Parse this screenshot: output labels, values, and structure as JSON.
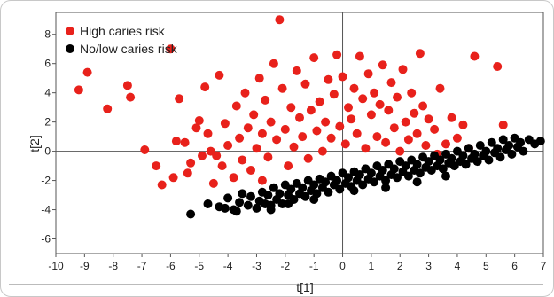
{
  "chart_data": {
    "type": "scatter",
    "xlabel": "t[1]",
    "ylabel": "t[2]",
    "xlim": [
      -10,
      7
    ],
    "ylim": [
      -7,
      9.5
    ],
    "xticks": [
      "-10",
      "-9",
      "-8",
      "-7",
      "-6",
      "-5",
      "-4",
      "-3",
      "-2",
      "-1",
      "0",
      "1",
      "2",
      "3",
      "4",
      "5",
      "6",
      "7"
    ],
    "yticks": [
      "-6",
      "-4",
      "-2",
      "0",
      "2",
      "4",
      "6",
      "8"
    ],
    "legend_position": "top-left",
    "grid": false,
    "series": [
      {
        "name": "High caries risk",
        "color": "#e8211b",
        "points": [
          [
            -9.2,
            4.2
          ],
          [
            -8.9,
            5.4
          ],
          [
            -8.2,
            2.9
          ],
          [
            -7.5,
            4.5
          ],
          [
            -7.4,
            3.7
          ],
          [
            -6.9,
            0.1
          ],
          [
            -6.3,
            -2.3
          ],
          [
            -6.0,
            7.0
          ],
          [
            -5.8,
            0.7
          ],
          [
            -5.7,
            3.6
          ],
          [
            -5.5,
            0.6
          ],
          [
            -5.4,
            -1.5
          ],
          [
            -5.3,
            -0.8
          ],
          [
            -5.1,
            1.6
          ],
          [
            -5.0,
            2.1
          ],
          [
            -4.9,
            -0.3
          ],
          [
            -4.8,
            4.4
          ],
          [
            -4.7,
            1.2
          ],
          [
            -4.6,
            0.0
          ],
          [
            -4.5,
            -2.2
          ],
          [
            -4.3,
            5.2
          ],
          [
            -4.2,
            -1.0
          ],
          [
            -4.1,
            1.9
          ],
          [
            -4.0,
            0.4
          ],
          [
            -3.8,
            -1.8
          ],
          [
            -3.7,
            3.1
          ],
          [
            -3.6,
            0.9
          ],
          [
            -3.5,
            -0.6
          ],
          [
            -3.4,
            4.0
          ],
          [
            -3.3,
            1.6
          ],
          [
            -3.2,
            -1.3
          ],
          [
            -3.1,
            2.5
          ],
          [
            -3.0,
            0.2
          ],
          [
            -2.9,
            5.0
          ],
          [
            -2.8,
            -2.0
          ],
          [
            -2.8,
            1.2
          ],
          [
            -2.7,
            3.5
          ],
          [
            -2.6,
            -0.4
          ],
          [
            -2.5,
            2.0
          ],
          [
            -2.4,
            6.0
          ],
          [
            -2.3,
            0.8
          ],
          [
            -2.2,
            9.0
          ],
          [
            -2.1,
            4.3
          ],
          [
            -2.0,
            1.5
          ],
          [
            -1.9,
            -1.0
          ],
          [
            -1.8,
            3.0
          ],
          [
            -1.7,
            0.3
          ],
          [
            -1.6,
            5.5
          ],
          [
            -1.5,
            2.3
          ],
          [
            -1.4,
            1.0
          ],
          [
            -1.3,
            4.6
          ],
          [
            -1.2,
            -0.5
          ],
          [
            -1.1,
            2.8
          ],
          [
            -1.0,
            6.4
          ],
          [
            -0.9,
            1.4
          ],
          [
            -0.8,
            3.4
          ],
          [
            -0.7,
            0.0
          ],
          [
            -0.6,
            2.0
          ],
          [
            -0.5,
            4.9
          ],
          [
            -0.4,
            0.9
          ],
          [
            -0.3,
            3.9
          ],
          [
            -0.2,
            6.6
          ],
          [
            -0.1,
            1.7
          ],
          [
            0.0,
            5.1
          ],
          [
            0.1,
            0.5
          ],
          [
            0.2,
            3.0
          ],
          [
            0.3,
            2.2
          ],
          [
            0.4,
            4.3
          ],
          [
            0.5,
            1.2
          ],
          [
            0.6,
            6.5
          ],
          [
            0.7,
            3.6
          ],
          [
            0.8,
            0.2
          ],
          [
            0.9,
            5.3
          ],
          [
            1.0,
            2.5
          ],
          [
            1.1,
            4.0
          ],
          [
            1.2,
            1.0
          ],
          [
            1.3,
            3.2
          ],
          [
            1.4,
            5.9
          ],
          [
            1.5,
            0.6
          ],
          [
            1.6,
            2.8
          ],
          [
            1.7,
            4.7
          ],
          [
            1.8,
            1.6
          ],
          [
            1.9,
            3.7
          ],
          [
            2.0,
            0.0
          ],
          [
            2.1,
            5.6
          ],
          [
            2.2,
            2.0
          ],
          [
            2.3,
            0.8
          ],
          [
            2.4,
            4.0
          ],
          [
            2.5,
            2.6
          ],
          [
            2.6,
            1.2
          ],
          [
            2.7,
            6.7
          ],
          [
            2.8,
            3.1
          ],
          [
            2.9,
            0.4
          ],
          [
            3.0,
            2.2
          ],
          [
            3.2,
            1.5
          ],
          [
            3.4,
            4.3
          ],
          [
            3.6,
            0.5
          ],
          [
            3.8,
            2.3
          ],
          [
            4.0,
            0.9
          ],
          [
            4.2,
            1.8
          ],
          [
            4.6,
            6.5
          ],
          [
            5.4,
            5.8
          ],
          [
            5.6,
            1.8
          ],
          [
            4.4,
            0.2
          ],
          [
            3.3,
            -0.2
          ],
          [
            -6.5,
            -1.0
          ],
          [
            -5.9,
            -1.8
          ],
          [
            -4.4,
            -0.3
          ]
        ]
      },
      {
        "name": "No/low caries risk",
        "color": "#000000",
        "points": [
          [
            -5.3,
            -4.3
          ],
          [
            -4.7,
            -3.6
          ],
          [
            -4.3,
            -3.8
          ],
          [
            -4.0,
            -3.2
          ],
          [
            -3.8,
            -4.0
          ],
          [
            -3.6,
            -3.5
          ],
          [
            -3.5,
            -2.9
          ],
          [
            -3.3,
            -3.7
          ],
          [
            -3.2,
            -3.1
          ],
          [
            -3.0,
            -3.9
          ],
          [
            -2.9,
            -3.4
          ],
          [
            -2.8,
            -2.8
          ],
          [
            -2.7,
            -3.6
          ],
          [
            -2.6,
            -3.0
          ],
          [
            -2.5,
            -3.7
          ],
          [
            -2.4,
            -2.5
          ],
          [
            -2.3,
            -3.3
          ],
          [
            -2.2,
            -2.9
          ],
          [
            -2.1,
            -3.6
          ],
          [
            -2.0,
            -2.3
          ],
          [
            -1.9,
            -3.0
          ],
          [
            -1.8,
            -2.6
          ],
          [
            -1.7,
            -3.3
          ],
          [
            -1.6,
            -2.2
          ],
          [
            -1.5,
            -2.9
          ],
          [
            -1.4,
            -2.5
          ],
          [
            -1.3,
            -3.1
          ],
          [
            -1.2,
            -2.0
          ],
          [
            -1.1,
            -2.7
          ],
          [
            -1.0,
            -2.3
          ],
          [
            -0.9,
            -2.9
          ],
          [
            -0.8,
            -1.9
          ],
          [
            -0.7,
            -2.5
          ],
          [
            -0.6,
            -2.1
          ],
          [
            -0.5,
            -2.8
          ],
          [
            -0.4,
            -1.7
          ],
          [
            -0.3,
            -2.3
          ],
          [
            -0.2,
            -2.0
          ],
          [
            -0.1,
            -2.6
          ],
          [
            0.0,
            -1.5
          ],
          [
            0.1,
            -2.2
          ],
          [
            0.2,
            -1.8
          ],
          [
            0.3,
            -2.4
          ],
          [
            0.4,
            -1.4
          ],
          [
            0.5,
            -2.0
          ],
          [
            0.6,
            -1.6
          ],
          [
            0.7,
            -2.3
          ],
          [
            0.8,
            -1.2
          ],
          [
            0.9,
            -1.9
          ],
          [
            1.0,
            -1.5
          ],
          [
            1.1,
            -2.1
          ],
          [
            1.2,
            -1.0
          ],
          [
            1.3,
            -1.7
          ],
          [
            1.4,
            -1.3
          ],
          [
            1.5,
            -2.0
          ],
          [
            1.6,
            -0.9
          ],
          [
            1.7,
            -1.6
          ],
          [
            1.8,
            -1.2
          ],
          [
            1.9,
            -1.8
          ],
          [
            2.0,
            -0.7
          ],
          [
            2.1,
            -1.4
          ],
          [
            2.2,
            -1.0
          ],
          [
            2.3,
            -1.7
          ],
          [
            2.4,
            -0.6
          ],
          [
            2.5,
            -1.3
          ],
          [
            2.6,
            -0.9
          ],
          [
            2.7,
            -1.5
          ],
          [
            2.8,
            -0.4
          ],
          [
            2.9,
            -1.1
          ],
          [
            3.0,
            -0.7
          ],
          [
            3.1,
            -1.3
          ],
          [
            3.2,
            -0.3
          ],
          [
            3.3,
            -1.0
          ],
          [
            3.4,
            -0.6
          ],
          [
            3.5,
            -1.2
          ],
          [
            3.6,
            -0.2
          ],
          [
            3.7,
            -0.8
          ],
          [
            3.8,
            -0.5
          ],
          [
            3.9,
            -1.0
          ],
          [
            4.0,
            0.0
          ],
          [
            4.1,
            -0.7
          ],
          [
            4.2,
            -0.3
          ],
          [
            4.3,
            -0.9
          ],
          [
            4.4,
            0.2
          ],
          [
            4.5,
            -0.5
          ],
          [
            4.6,
            -0.2
          ],
          [
            4.7,
            -0.7
          ],
          [
            4.8,
            0.4
          ],
          [
            4.9,
            -0.3
          ],
          [
            5.0,
            0.0
          ],
          [
            5.1,
            -0.6
          ],
          [
            5.2,
            0.6
          ],
          [
            5.3,
            -0.1
          ],
          [
            5.4,
            0.2
          ],
          [
            5.5,
            -0.4
          ],
          [
            5.6,
            0.8
          ],
          [
            5.7,
            0.1
          ],
          [
            5.8,
            0.4
          ],
          [
            5.9,
            -0.2
          ],
          [
            6.0,
            0.9
          ],
          [
            6.1,
            0.3
          ],
          [
            6.2,
            0.6
          ],
          [
            6.3,
            0.0
          ],
          [
            6.5,
            0.8
          ],
          [
            6.7,
            0.5
          ],
          [
            6.9,
            0.7
          ],
          [
            -4.1,
            -3.9
          ],
          [
            -3.7,
            -4.1
          ],
          [
            -2.5,
            -4.0
          ],
          [
            -1.9,
            -3.6
          ],
          [
            -1.0,
            -3.3
          ],
          [
            0.4,
            -2.7
          ],
          [
            1.5,
            -2.5
          ],
          [
            2.6,
            -2.1
          ],
          [
            3.6,
            -1.7
          ]
        ]
      }
    ]
  }
}
